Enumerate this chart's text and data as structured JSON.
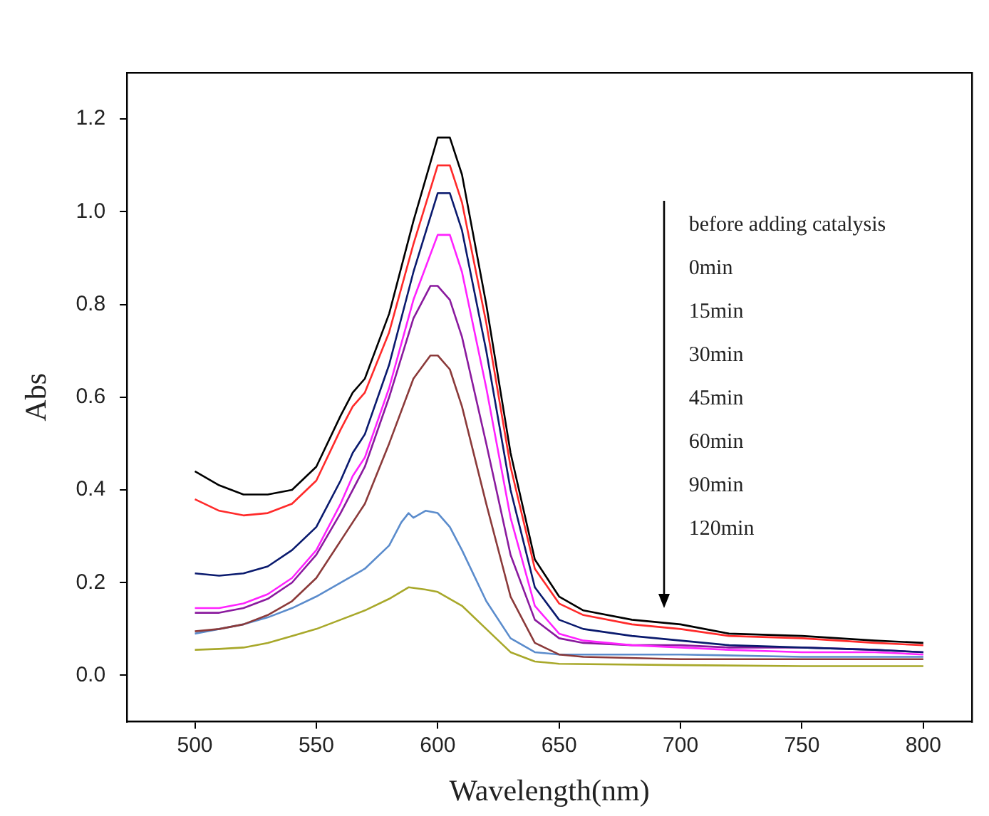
{
  "chart_data": {
    "type": "line",
    "xlabel": "Wavelength(nm)",
    "ylabel": "Abs",
    "xlim": [
      472,
      820
    ],
    "ylim": [
      -0.1,
      1.3
    ],
    "xticks": [
      500,
      550,
      600,
      650,
      700,
      750,
      800
    ],
    "yticks": [
      {
        "value": 0,
        "label": "0.0"
      },
      {
        "value": 0.2,
        "label": "0.2"
      },
      {
        "value": 0.4,
        "label": "0.4"
      },
      {
        "value": 0.6,
        "label": "0.6"
      },
      {
        "value": 0.8,
        "label": "0.8"
      },
      {
        "value": 1,
        "label": "1.0"
      },
      {
        "value": 1.2,
        "label": "1.2"
      }
    ],
    "annotations": [
      "before adding catalysis",
      "0min",
      "15min",
      "30min",
      "45min",
      "60min",
      "90min",
      "120min"
    ],
    "grid": false,
    "marker": "none",
    "line_style": "solid",
    "series": [
      {
        "color": "#000000",
        "x": [
          500,
          510,
          520,
          530,
          540,
          550,
          560,
          565,
          570,
          580,
          590,
          600,
          605,
          610,
          620,
          630,
          640,
          650,
          660,
          680,
          700,
          720,
          750,
          780,
          800
        ],
        "values": [
          0.44,
          0.41,
          0.39,
          0.39,
          0.4,
          0.45,
          0.56,
          0.61,
          0.64,
          0.78,
          0.98,
          1.16,
          1.16,
          1.08,
          0.8,
          0.48,
          0.25,
          0.17,
          0.14,
          0.12,
          0.11,
          0.09,
          0.085,
          0.075,
          0.07
        ]
      },
      {
        "color": "#ff2a2a",
        "x": [
          500,
          510,
          520,
          530,
          540,
          550,
          560,
          565,
          570,
          580,
          590,
          600,
          605,
          610,
          620,
          630,
          640,
          650,
          660,
          680,
          700,
          720,
          750,
          780,
          800
        ],
        "values": [
          0.38,
          0.355,
          0.345,
          0.35,
          0.37,
          0.42,
          0.53,
          0.58,
          0.61,
          0.74,
          0.93,
          1.1,
          1.1,
          1.02,
          0.76,
          0.45,
          0.23,
          0.155,
          0.13,
          0.11,
          0.1,
          0.085,
          0.08,
          0.07,
          0.065
        ]
      },
      {
        "color": "#0a1a6e",
        "x": [
          500,
          510,
          520,
          530,
          540,
          550,
          560,
          565,
          570,
          580,
          590,
          600,
          605,
          610,
          620,
          630,
          640,
          650,
          660,
          680,
          700,
          720,
          750,
          780,
          800
        ],
        "values": [
          0.22,
          0.215,
          0.22,
          0.235,
          0.27,
          0.32,
          0.42,
          0.48,
          0.52,
          0.67,
          0.87,
          1.04,
          1.04,
          0.96,
          0.7,
          0.4,
          0.19,
          0.12,
          0.1,
          0.085,
          0.075,
          0.065,
          0.06,
          0.055,
          0.05
        ]
      },
      {
        "color": "#ff22ff",
        "x": [
          500,
          510,
          520,
          530,
          540,
          550,
          560,
          565,
          570,
          580,
          590,
          600,
          605,
          610,
          620,
          630,
          640,
          650,
          660,
          680,
          700,
          720,
          750,
          780,
          800
        ],
        "values": [
          0.145,
          0.145,
          0.155,
          0.175,
          0.21,
          0.27,
          0.37,
          0.43,
          0.47,
          0.62,
          0.81,
          0.95,
          0.95,
          0.87,
          0.62,
          0.34,
          0.15,
          0.09,
          0.075,
          0.065,
          0.06,
          0.055,
          0.05,
          0.05,
          0.045
        ]
      },
      {
        "color": "#8a1a9e",
        "x": [
          500,
          510,
          520,
          530,
          540,
          550,
          560,
          570,
          580,
          590,
          597,
          600,
          605,
          610,
          620,
          630,
          640,
          650,
          660,
          680,
          700,
          720,
          750,
          780,
          800
        ],
        "values": [
          0.135,
          0.135,
          0.145,
          0.165,
          0.2,
          0.26,
          0.35,
          0.45,
          0.6,
          0.77,
          0.84,
          0.84,
          0.81,
          0.73,
          0.5,
          0.26,
          0.12,
          0.08,
          0.07,
          0.065,
          0.065,
          0.06,
          0.06,
          0.055,
          0.05
        ]
      },
      {
        "color": "#8b3a3a",
        "x": [
          500,
          510,
          520,
          530,
          540,
          550,
          560,
          570,
          580,
          590,
          597,
          600,
          605,
          610,
          620,
          630,
          640,
          650,
          660,
          700,
          750,
          800
        ],
        "values": [
          0.095,
          0.1,
          0.11,
          0.13,
          0.16,
          0.21,
          0.29,
          0.37,
          0.5,
          0.64,
          0.69,
          0.69,
          0.66,
          0.58,
          0.37,
          0.17,
          0.07,
          0.045,
          0.04,
          0.035,
          0.035,
          0.035
        ]
      },
      {
        "color": "#5b8ccc",
        "x": [
          500,
          510,
          520,
          530,
          540,
          550,
          560,
          570,
          580,
          585,
          588,
          590,
          595,
          600,
          605,
          610,
          620,
          630,
          640,
          650,
          700,
          750,
          800
        ],
        "values": [
          0.09,
          0.1,
          0.11,
          0.125,
          0.145,
          0.17,
          0.2,
          0.23,
          0.28,
          0.33,
          0.35,
          0.34,
          0.355,
          0.35,
          0.32,
          0.27,
          0.16,
          0.08,
          0.05,
          0.045,
          0.045,
          0.04,
          0.04
        ]
      },
      {
        "color": "#a8a82a",
        "x": [
          500,
          510,
          520,
          530,
          540,
          550,
          560,
          570,
          580,
          588,
          595,
          600,
          610,
          620,
          630,
          640,
          650,
          700,
          750,
          800
        ],
        "values": [
          0.055,
          0.057,
          0.06,
          0.07,
          0.085,
          0.1,
          0.12,
          0.14,
          0.165,
          0.19,
          0.185,
          0.18,
          0.15,
          0.1,
          0.05,
          0.03,
          0.025,
          0.022,
          0.02,
          0.02
        ]
      }
    ]
  }
}
